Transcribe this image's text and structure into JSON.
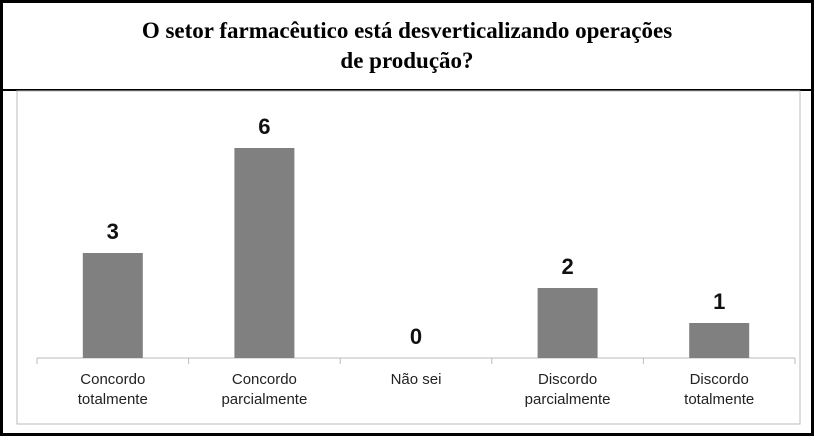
{
  "chart_data": {
    "type": "bar",
    "title": "O setor farmacêutico está desverticalizando operações de produção?",
    "categories": [
      "Concordo totalmente",
      "Concordo parcialmente",
      "Não sei",
      "Discordo parcialmente",
      "Discordo totalmente"
    ],
    "values": [
      3,
      6,
      0,
      2,
      1
    ],
    "color": "#808080",
    "ylim": [
      0,
      7
    ]
  }
}
